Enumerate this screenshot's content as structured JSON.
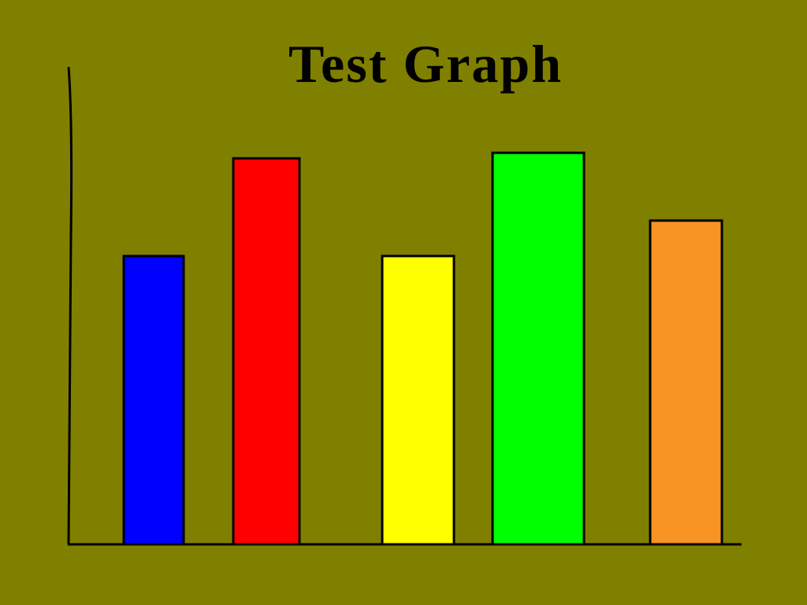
{
  "chart_data": {
    "type": "bar",
    "title": "Test Graph",
    "values": [
      366,
      490,
      366,
      497,
      411
    ],
    "colors": [
      "#0000ff",
      "#ff0000",
      "#ffff00",
      "#00ff00",
      "#f79423"
    ],
    "ylim": [
      0,
      606
    ]
  }
}
